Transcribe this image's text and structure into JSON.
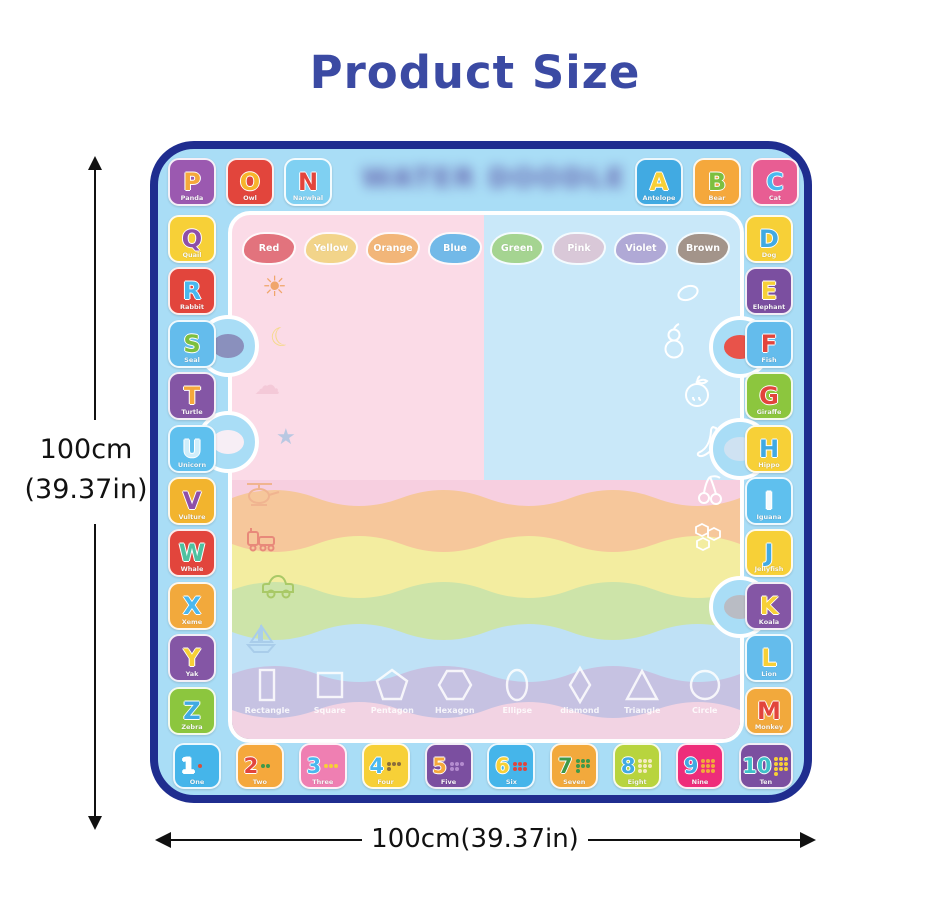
{
  "title": {
    "text": "Product Size",
    "color": "#3b4aa3"
  },
  "dimensions": {
    "left": {
      "line1": "100cm",
      "line2": "(39.37in)"
    },
    "bottom": {
      "label": "100cm(39.37in)"
    }
  },
  "colors": {
    "mat_border": "#1f2d8f",
    "mat_band": "#a9ddf6",
    "da_pink": "#fbdbe7",
    "da_blue": "#c9e8f9"
  },
  "mat": {
    "watermark": {
      "text": "WATER DOODLE",
      "blurred": true
    },
    "letter_tiles": {
      "top_left": [
        {
          "letter": "P",
          "animal": "Panda",
          "bg": "#9b59b0",
          "fg": "#f5a83c"
        },
        {
          "letter": "O",
          "animal": "Owl",
          "bg": "#e2453c",
          "fg": "#f7b32b"
        },
        {
          "letter": "N",
          "animal": "Narwhal",
          "bg": "#7fd0f2",
          "fg": "#e2453c"
        }
      ],
      "top_right": [
        {
          "letter": "A",
          "animal": "Antelope",
          "bg": "#41aae2",
          "fg": "#f7d037"
        },
        {
          "letter": "B",
          "animal": "Bear",
          "bg": "#f5a83c",
          "fg": "#7dbf3f"
        },
        {
          "letter": "C",
          "animal": "Cat",
          "bg": "#e85d93",
          "fg": "#4ab8ee"
        }
      ],
      "left": [
        {
          "letter": "Q",
          "animal": "Quail",
          "bg": "#f7d037",
          "fg": "#8e4fa8"
        },
        {
          "letter": "R",
          "animal": "Rabbit",
          "bg": "#e2453c",
          "fg": "#4ab8ee"
        },
        {
          "letter": "S",
          "animal": "Seal",
          "bg": "#64bcec",
          "fg": "#7dbf3f"
        },
        {
          "letter": "T",
          "animal": "Turtle",
          "bg": "#8456a5",
          "fg": "#f5a83c"
        },
        {
          "letter": "U",
          "animal": "Unicorn",
          "bg": "#5fc0ee",
          "fg": "#cfeefb"
        },
        {
          "letter": "V",
          "animal": "Vulture",
          "bg": "#f2b42e",
          "fg": "#8e4fa8"
        },
        {
          "letter": "W",
          "animal": "Whale",
          "bg": "#e2453c",
          "fg": "#4fc1a0"
        },
        {
          "letter": "X",
          "animal": "Xeme",
          "bg": "#f2a93c",
          "fg": "#4ab8ee"
        },
        {
          "letter": "Y",
          "animal": "Yak",
          "bg": "#8456a5",
          "fg": "#f7d037"
        },
        {
          "letter": "Z",
          "animal": "Zebra",
          "bg": "#8cc63e",
          "fg": "#41aae2"
        }
      ],
      "right": [
        {
          "letter": "D",
          "animal": "Dog",
          "bg": "#f7d037",
          "fg": "#41aae2"
        },
        {
          "letter": "E",
          "animal": "Elephant",
          "bg": "#7b4fa0",
          "fg": "#f7d037"
        },
        {
          "letter": "F",
          "animal": "Fish",
          "bg": "#64bcec",
          "fg": "#e2453c"
        },
        {
          "letter": "G",
          "animal": "Giraffe",
          "bg": "#8cc63e",
          "fg": "#e2453c"
        },
        {
          "letter": "H",
          "animal": "Hippo",
          "bg": "#f7d037",
          "fg": "#41aae2"
        },
        {
          "letter": "I",
          "animal": "Iguana",
          "bg": "#5fc0ee",
          "fg": "#f4fafd"
        },
        {
          "letter": "J",
          "animal": "Jellyfish",
          "bg": "#f7d037",
          "fg": "#41aae2"
        },
        {
          "letter": "K",
          "animal": "Koala",
          "bg": "#8456a5",
          "fg": "#f7d037"
        },
        {
          "letter": "L",
          "animal": "Lion",
          "bg": "#64bcec",
          "fg": "#f7d037"
        },
        {
          "letter": "M",
          "animal": "Monkey",
          "bg": "#f2a93c",
          "fg": "#e2453c"
        }
      ]
    },
    "number_tiles": [
      {
        "value": "1",
        "word": "One",
        "bg": "#45b5ea",
        "fg": "#ffffff",
        "item_color": "#d94f3a"
      },
      {
        "value": "2",
        "word": "Two",
        "bg": "#f5a83c",
        "fg": "#e2453c",
        "item_color": "#3f9948"
      },
      {
        "value": "3",
        "word": "Three",
        "bg": "#ef7fb2",
        "fg": "#4ab8ee",
        "item_color": "#f7d037"
      },
      {
        "value": "4",
        "word": "Four",
        "bg": "#f7d037",
        "fg": "#4ab8ee",
        "item_color": "#8a6d3b"
      },
      {
        "value": "5",
        "word": "Five",
        "bg": "#7b4fa0",
        "fg": "#f5a83c",
        "item_color": "#b48ccf"
      },
      {
        "value": "6",
        "word": "Six",
        "bg": "#45b5ea",
        "fg": "#f7d037",
        "item_color": "#e2453c"
      },
      {
        "value": "7",
        "word": "Seven",
        "bg": "#f2a93c",
        "fg": "#3f9948",
        "item_color": "#3f9948"
      },
      {
        "value": "8",
        "word": "Eight",
        "bg": "#b8d43e",
        "fg": "#41aae2",
        "item_color": "#f4ecc2"
      },
      {
        "value": "9",
        "word": "Nine",
        "bg": "#ee2d7a",
        "fg": "#41aae2",
        "item_color": "#f2a93c"
      },
      {
        "value": "10",
        "word": "Ten",
        "bg": "#7b4fa0",
        "fg": "#3fc1c9",
        "item_color": "#f7d037"
      }
    ],
    "paint_colors": [
      {
        "name": "Red",
        "hex": "#e2737d"
      },
      {
        "name": "Yellow",
        "hex": "#f2d48a"
      },
      {
        "name": "Orange",
        "hex": "#f2b679"
      },
      {
        "name": "Blue",
        "hex": "#72b9e8"
      },
      {
        "name": "Green",
        "hex": "#a5d491"
      },
      {
        "name": "Pink",
        "hex": "#d9c8d8"
      },
      {
        "name": "Violet",
        "hex": "#b0a9d6"
      },
      {
        "name": "Brown",
        "hex": "#a3948a"
      }
    ],
    "shapes": [
      "Rectangle",
      "Square",
      "Pentagon",
      "Hexagon",
      "Ellipse",
      "diamond",
      "Triangle",
      "Circle"
    ],
    "wave_colors": [
      "#f7cfe0",
      "#f6c79b",
      "#f3eda0",
      "#cde4a9",
      "#bfe1f6",
      "#c6c2e2",
      "#f2d3e3"
    ],
    "doodles": [
      "sun",
      "moon",
      "cloud",
      "star",
      "helicopter",
      "train",
      "car",
      "sailboat",
      "lemon",
      "pear",
      "apple",
      "banana",
      "cherries",
      "honeycomb"
    ],
    "bulges": [
      {
        "name": "seal",
        "color": "#8a90bd"
      },
      {
        "name": "unicorn",
        "color": "#f7eef5"
      },
      {
        "name": "fish",
        "color": "#e8534a"
      },
      {
        "name": "hippo",
        "color": "#cfe2f2"
      },
      {
        "name": "koala",
        "color": "#b9bcc4"
      }
    ]
  }
}
